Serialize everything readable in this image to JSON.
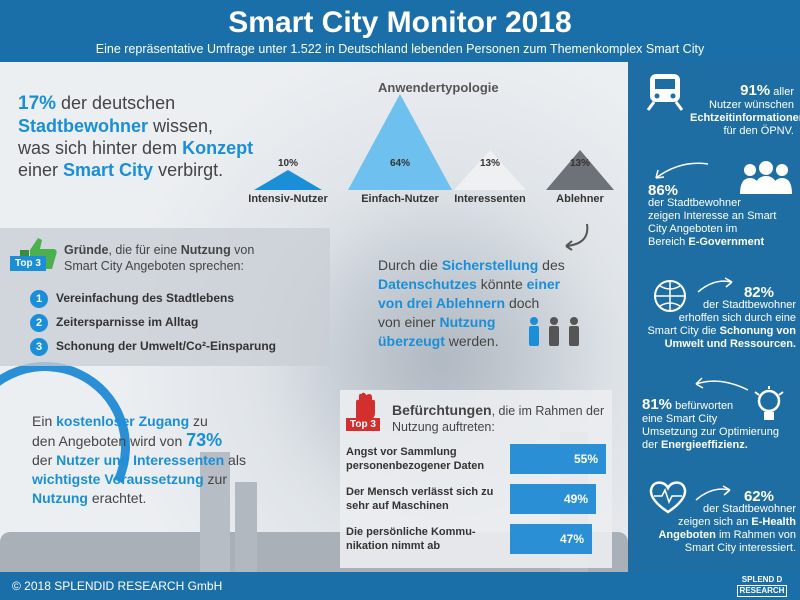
{
  "header": {
    "title": "Smart City Monitor 2018",
    "subtitle": "Eine repräsentative Umfrage unter 1.522 in Deutschland lebenden Personen zum Themenkomplex Smart City"
  },
  "intro": {
    "pct": "17%",
    "t1": " der deutschen",
    "t2": "Stadtbewohner",
    "t3": " wissen,",
    "t4": "was sich hinter dem ",
    "t5": "Konzept",
    "t6": "einer ",
    "t7": "Smart City",
    "t8": " verbirgt."
  },
  "typology": {
    "title": "Anwendertypologie",
    "items": [
      {
        "pct": "10%",
        "label": "Intensiv-Nutzer",
        "color": "#1a8fd8"
      },
      {
        "pct": "64%",
        "label": "Einfach-Nutzer",
        "color": "#6ec0ee"
      },
      {
        "pct": "13%",
        "label": "Interessenten",
        "color": "#eef0f2"
      },
      {
        "pct": "13%",
        "label": "Ablehner",
        "color": "#6d7279"
      }
    ]
  },
  "reasons": {
    "badge": "Top 3",
    "h1": "Gründe",
    "h2": ", die für eine ",
    "h3": "Nutzung",
    "h4": " von",
    "h5": "Smart City Angeboten sprechen:",
    "items": [
      {
        "n": "1",
        "label": "Vereinfachung des Stadtlebens"
      },
      {
        "n": "2",
        "label": "Zeitersparnisse im Alltag"
      },
      {
        "n": "3",
        "label": "Schonung der Umwelt/Co²-Einsparung"
      }
    ]
  },
  "privacy": {
    "l1a": "Durch die ",
    "l1b": "Sicherstellung",
    "l1c": " des",
    "l2a": "Datenschutzes",
    "l2b": " könnte ",
    "l2c": "einer",
    "l3a": "von drei Ablehnern",
    "l3b": " doch",
    "l4a": "von einer ",
    "l4b": "Nutzung",
    "l5a": "überzeugt",
    "l5b": " werden."
  },
  "free_access": {
    "l1a": "Ein ",
    "l1b": "kostenloser Zugang",
    "l1c": " zu",
    "l2a": "den Angeboten wird von ",
    "l2b": "73%",
    "l3a": "der ",
    "l3b": "Nutzer und Interessenten",
    "l3c": " als",
    "l4a": "wichtigste Voraussetzung",
    "l4b": " zur",
    "l5a": "Nutzung",
    "l5b": " erachtet."
  },
  "fears": {
    "badge": "Top 3",
    "h1": "Befürchtungen",
    "h2": ", die im Rahmen der",
    "h3": "Nutzung auftreten:",
    "items": [
      {
        "label": "Angst vor Sammlung personenbezogener Daten",
        "value": 55,
        "pct": "55%"
      },
      {
        "label": "Der Mensch verlässt sich zu sehr auf Maschinen",
        "value": 49,
        "pct": "49%"
      },
      {
        "label": "Die persönliche Kommu-nikation nimmt ab",
        "value": 47,
        "pct": "47%"
      }
    ]
  },
  "right": [
    {
      "pct": "91%",
      "a": " aller",
      "b": "Nutzer wünschen",
      "c": "Echtzeitinformationen",
      "d": "für den ÖPNV.",
      "icon": "train-icon"
    },
    {
      "pct": "86%",
      "a": "der Stadtbewohner",
      "b": "zeigen Interesse an Smart",
      "c": "City Angeboten im",
      "d": "Bereich ",
      "e": "E-Government",
      "icon": "people-icon"
    },
    {
      "pct": "82%",
      "a": "der Stadtbewohner",
      "b": "erhoffen sich durch eine",
      "c": "Smart City die ",
      "d": "Schonung von",
      "e": "Umwelt und Ressourcen.",
      "icon": "globe-icon"
    },
    {
      "pct": "81%",
      "a": " befürworten",
      "b": "eine Smart City",
      "c": "Umsetzung zur Optimierung",
      "d": "der ",
      "e": "Energieeffizienz.",
      "icon": "lightbulb-icon"
    },
    {
      "pct": "62%",
      "a": "der Stadtbewohner",
      "b": "zeigen sich an ",
      "c": "E-Health",
      "d": "Angeboten",
      "e": " im Rahmen von",
      "f": "Smart City interessiert.",
      "icon": "heart-icon"
    }
  ],
  "footer": {
    "copyright": "© 2018 SPLENDID RESEARCH GmbH",
    "logo1": "SPLEND D",
    "logo2": "RESEARCH"
  }
}
